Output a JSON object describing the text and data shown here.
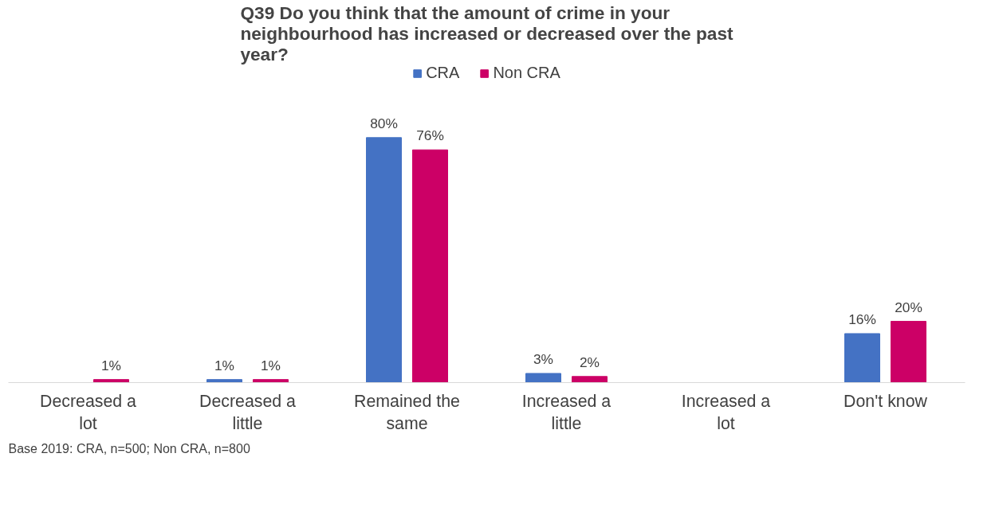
{
  "chart_data": {
    "type": "bar",
    "title": "Q39 Do you think that the amount of crime in your neighbourhood has increased or decreased over the past year?",
    "categories": [
      "Decreased a lot",
      "Decreased a little",
      "Remained the same",
      "Increased a little",
      "Increased a lot",
      "Don't know"
    ],
    "series": [
      {
        "name": "CRA",
        "color": "#4472c4",
        "values": [
          null,
          1,
          80,
          3,
          null,
          16
        ],
        "value_labels": [
          null,
          "1%",
          "80%",
          "3%",
          null,
          "16%"
        ]
      },
      {
        "name": "Non CRA",
        "color": "#cc0066",
        "values": [
          1,
          1,
          76,
          2,
          null,
          20
        ],
        "value_labels": [
          "1%",
          "1%",
          "76%",
          "2%",
          null,
          "20%"
        ]
      }
    ],
    "legend": "top",
    "grid": false,
    "annotations": [
      "Base 2019: CRA, n=500; Non CRA, n=800"
    ]
  }
}
